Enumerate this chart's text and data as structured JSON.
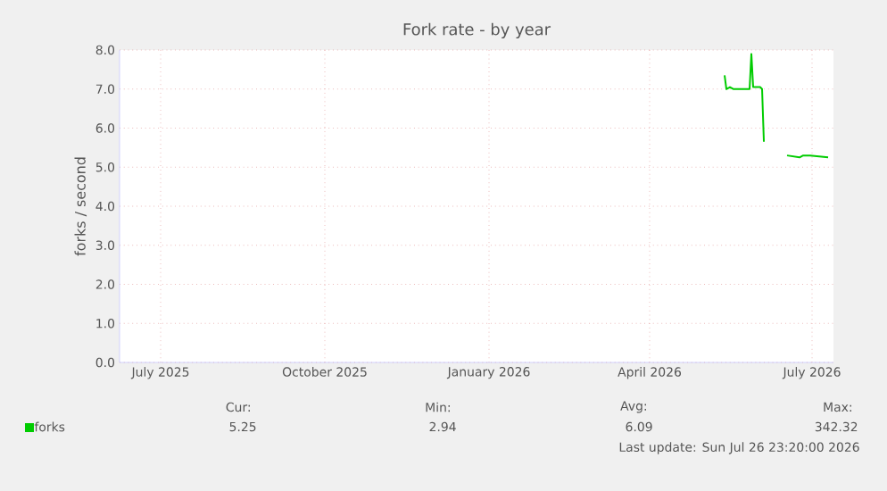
{
  "chart_data": {
    "type": "line",
    "title": "Fork rate - by year",
    "ylabel": "forks / second",
    "x": [
      "2026-05-27",
      "2026-05-28",
      "2026-05-30",
      "2026-06-01",
      "2026-06-10",
      "2026-06-11",
      "2026-06-12",
      "2026-06-16",
      "2026-06-17",
      "2026-06-18",
      "2026-06-25",
      "2026-07-01",
      "2026-07-08",
      "2026-07-10",
      "2026-07-14",
      "2026-07-24"
    ],
    "series": [
      {
        "name": "forks",
        "color": "#00cc00",
        "values": [
          7.35,
          7.0,
          7.05,
          7.0,
          7.0,
          7.9,
          7.05,
          7.05,
          7.0,
          5.65,
          null,
          5.3,
          5.25,
          5.3,
          5.3,
          5.25
        ]
      }
    ],
    "xlim": [
      "2025-06-22",
      "2026-07-27"
    ],
    "xticks": [
      {
        "value": "2025-07-15",
        "label": "July 2025"
      },
      {
        "value": "2025-10-15",
        "label": "October 2025"
      },
      {
        "value": "2026-01-15",
        "label": "January 2026"
      },
      {
        "value": "2026-04-15",
        "label": "April 2026"
      },
      {
        "value": "2026-07-15",
        "label": "July 2026"
      }
    ],
    "ylim": [
      0,
      8
    ],
    "yticks": [
      {
        "value": 0,
        "label": "0.0"
      },
      {
        "value": 1,
        "label": "1.0"
      },
      {
        "value": 2,
        "label": "2.0"
      },
      {
        "value": 3,
        "label": "3.0"
      },
      {
        "value": 4,
        "label": "4.0"
      },
      {
        "value": 5,
        "label": "5.0"
      },
      {
        "value": 6,
        "label": "6.0"
      },
      {
        "value": 7,
        "label": "7.0"
      },
      {
        "value": 8,
        "label": "8.0"
      }
    ],
    "grid": true,
    "legend": "bottom left",
    "marker": "none",
    "line_style": "solid",
    "annotations": [
      "Cur:",
      "5.25",
      "Min:",
      "2.94",
      "Avg:",
      "6.09",
      "Max:",
      "342.32",
      "Last update: Sun Jul 26 23:20:00 2026"
    ]
  }
}
